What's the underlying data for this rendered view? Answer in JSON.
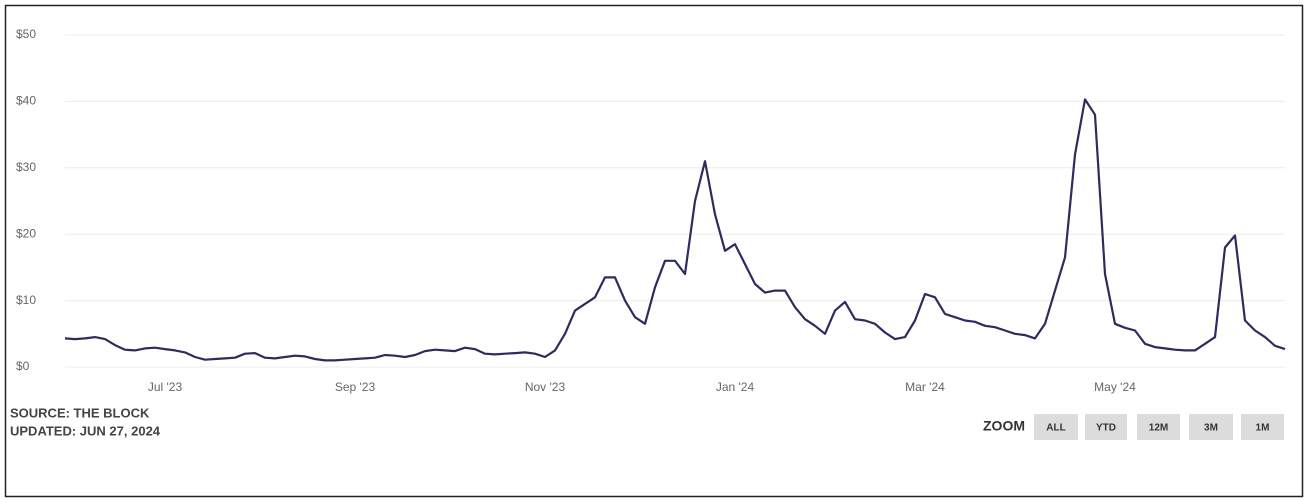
{
  "chart_data": {
    "type": "line",
    "categories": [
      null,
      null,
      null,
      null,
      null,
      null,
      null,
      null,
      null,
      null,
      "Jul '23",
      null,
      null,
      null,
      null,
      null,
      null,
      null,
      null,
      null,
      null,
      null,
      null,
      null,
      null,
      null,
      null,
      null,
      null,
      "Sep '23",
      null,
      null,
      null,
      null,
      null,
      null,
      null,
      null,
      null,
      null,
      null,
      null,
      null,
      null,
      null,
      null,
      null,
      null,
      "Nov '23",
      null,
      null,
      null,
      null,
      null,
      null,
      null,
      null,
      null,
      null,
      null,
      null,
      null,
      null,
      null,
      null,
      null,
      null,
      "Jan '24",
      null,
      null,
      null,
      null,
      null,
      null,
      null,
      null,
      null,
      null,
      null,
      null,
      null,
      null,
      null,
      null,
      null,
      null,
      "Mar '24",
      null,
      null,
      null,
      null,
      null,
      null,
      null,
      null,
      null,
      null,
      null,
      null,
      null,
      null,
      null,
      null,
      null,
      null,
      "May '24",
      null,
      null,
      null,
      null,
      null,
      null,
      null,
      null,
      null,
      null,
      null,
      null,
      null,
      null,
      null,
      null,
      null
    ],
    "series": [
      {
        "name": null,
        "color": "#2e2c5e",
        "values": [
          4.3,
          4.2,
          4.3,
          4.5,
          4.2,
          3.3,
          2.6,
          2.5,
          2.8,
          2.9,
          2.7,
          2.5,
          2.2,
          1.5,
          1.1,
          1.2,
          1.3,
          1.4,
          2.0,
          2.1,
          1.4,
          1.3,
          1.5,
          1.7,
          1.6,
          1.2,
          1.0,
          1.0,
          1.1,
          1.2,
          1.3,
          1.4,
          1.8,
          1.7,
          1.5,
          1.8,
          2.4,
          2.6,
          2.5,
          2.4,
          2.9,
          2.7,
          2.0,
          1.9,
          2.0,
          2.1,
          2.2,
          2.0,
          1.5,
          2.5,
          5.0,
          8.5,
          9.5,
          10.5,
          13.5,
          13.5,
          10,
          7.5,
          6.5,
          12,
          16,
          16,
          14,
          25,
          31,
          23,
          17.5,
          18.5,
          15.5,
          12.5,
          11.2,
          11.5,
          11.5,
          9.0,
          7.2,
          6.2,
          5.0,
          8.5,
          9.8,
          7.2,
          7.0,
          6.5,
          5.2,
          4.2,
          4.5,
          7.0,
          11,
          10.5,
          8.0,
          7.5,
          7.0,
          6.8,
          6.2,
          6.0,
          5.5,
          5.0,
          4.8,
          4.3,
          6.5,
          11.5,
          16.5,
          32,
          40.3,
          38,
          14,
          6.5,
          5.9,
          5.5,
          3.5,
          3.0,
          2.8,
          2.6,
          2.5,
          2.5,
          3.5,
          4.5,
          18,
          19.8,
          7,
          5.5,
          4.5,
          3.2,
          2.7
        ]
      }
    ],
    "ylim": [
      0,
      50
    ],
    "yticks": [
      {
        "value": 0,
        "label": "$0"
      },
      {
        "value": 10,
        "label": "$10"
      },
      {
        "value": 20,
        "label": "$20"
      },
      {
        "value": 30,
        "label": "$30"
      },
      {
        "value": 40,
        "label": "$40"
      },
      {
        "value": 50,
        "label": "$50"
      }
    ],
    "grid": true
  },
  "footer": {
    "source": "SOURCE: THE BLOCK",
    "updated": "UPDATED: JUN 27, 2024"
  },
  "zoom": {
    "label": "ZOOM",
    "buttons": [
      "ALL",
      "YTD",
      "12M",
      "3M",
      "1M"
    ]
  }
}
